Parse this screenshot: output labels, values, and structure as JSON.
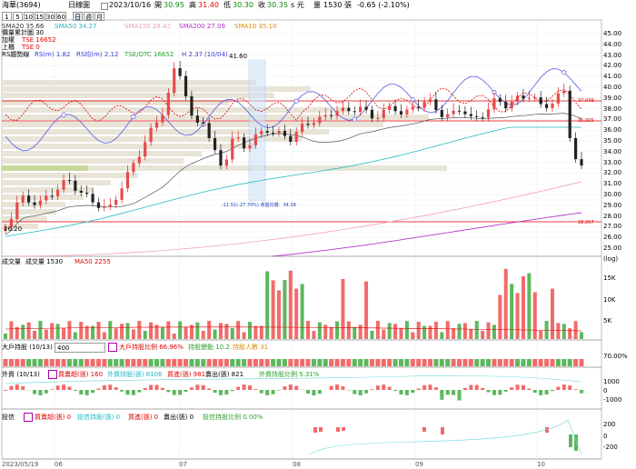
{
  "title": "海華(3694)",
  "header": {
    "period": "日線圖",
    "date": "2023/10/16",
    "open_label": "開",
    "open": "30.95",
    "high_label": "高",
    "high": "31.40",
    "low_label": "低",
    "low": "30.30",
    "close_label": "收",
    "close": "30.35",
    "unit": "s 元",
    "vol_label": "量",
    "volume": "1530",
    "vol_unit": "張",
    "change": "-0.65 (-2.10%)"
  },
  "toolbar": {
    "buttons": [
      "1",
      "5",
      "10",
      "15",
      "30",
      "60",
      "日",
      "週",
      "月"
    ],
    "selected": 6
  },
  "ma_legend": [
    {
      "text": "SMA20 35.66",
      "color": "#333333"
    },
    {
      "text": "SMA50 34.27",
      "color": "#1fb8c4"
    },
    {
      "text": "SMA150 29.42",
      "color": "#f2a0b8"
    },
    {
      "text": "SMA200 27.09",
      "color": "#b030c8"
    },
    {
      "text": "SMA10 35.10",
      "color": "#e08a00"
    }
  ],
  "legend2": {
    "a": "價量累計圖 30",
    "b1": "加權",
    "b2": "TSE 16652",
    "c1": "上櫃",
    "c2": "TSE 0"
  },
  "rs_legend": {
    "name": "RS趨勢線",
    "rsm": "RS(m) 1.82",
    "rsavg": "RS均(m) 2.12",
    "tse_otc": "TSE/OTC 16652",
    "h": "H 2.37",
    "h_date": "(10/04)"
  },
  "price_axis": [
    "45.00",
    "44.00",
    "43.00",
    "42.00",
    "41.00",
    "40.00",
    "39.00",
    "38.00",
    "37.00",
    "36.00",
    "35.00",
    "34.00",
    "33.00",
    "32.00",
    "31.00",
    "30.00",
    "29.00",
    "28.00",
    "27.00",
    "26.00",
    "25.00",
    "(log)"
  ],
  "annotations": {
    "peak": "41.60",
    "low_start": "26.20",
    "range_note": "-11.51(-27.70%) 收盤均價：34.38",
    "line_a": "37.049",
    "line_b": "35.005",
    "line_c": "28.267"
  },
  "volume_panel": {
    "label": "成交量",
    "vol_label": "成交量 1530",
    "ma_label": "MA50 2255",
    "axis": [
      "15K",
      "10K",
      "5K"
    ]
  },
  "holders_panel": {
    "label": "大戶持股 (10/13)",
    "input": "400",
    "l1": "大戶持股比例 66.96%",
    "l2": "持股變動 10.2",
    "l3": "持股人數 31",
    "axis": "70.00%"
  },
  "foreign_panel": {
    "label": "外資 (10/13)",
    "l1": "買賣超(張) 160",
    "l2": "外資持股(張) 8106",
    "l3": "買進(張) 981",
    "l4": "賣出(張) 821",
    "l5": "外資持股比例 5.31%",
    "axis": [
      "1000",
      "0",
      "-1000"
    ]
  },
  "trust_panel": {
    "label": "投信",
    "l1": "買賣超(張) 0",
    "l2": "投信持股(張) 0",
    "l3": "買進(張) 0",
    "l4": "賣出(張) 0",
    "l5": "投信持股比例 0.00%",
    "axis": [
      "200",
      "0",
      "-200"
    ]
  },
  "x_axis": {
    "start": "2023/05/19",
    "months": [
      "06",
      "07",
      "08",
      "09",
      "10"
    ]
  }
}
